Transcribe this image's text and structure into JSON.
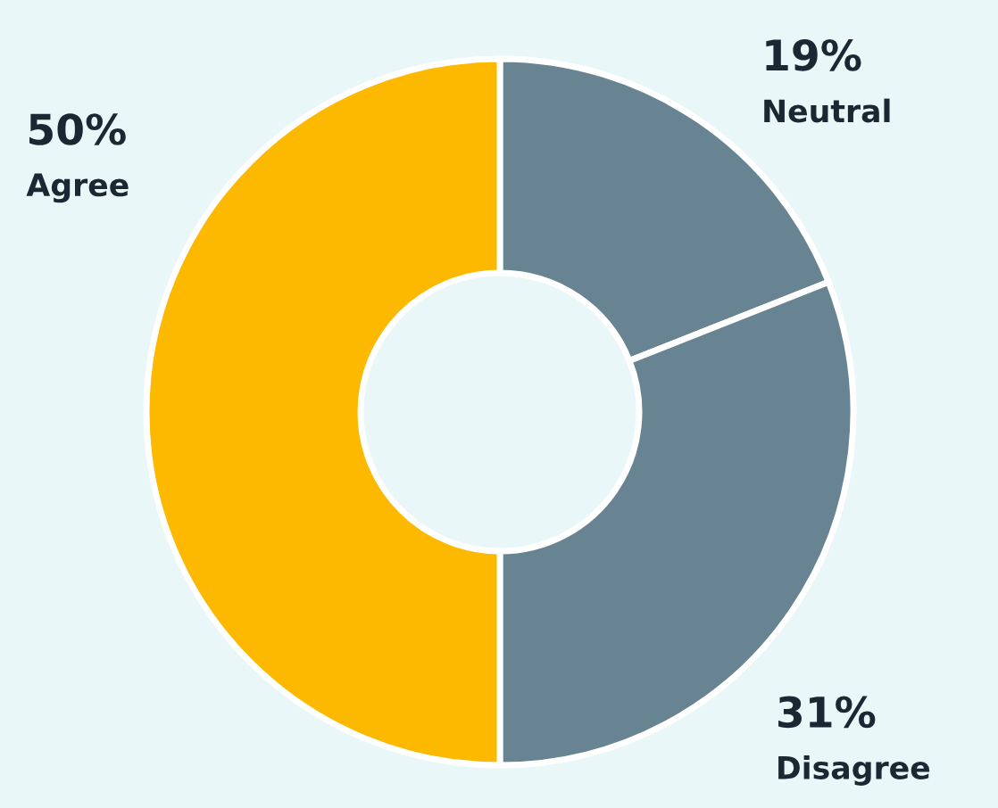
{
  "chart_data": {
    "type": "donut",
    "categories": [
      "Neutral",
      "Disagree",
      "Agree"
    ],
    "values": [
      19,
      31,
      50
    ],
    "colors": [
      "#688391",
      "#688391",
      "#fdb900"
    ],
    "value_labels": [
      "19%",
      "31%",
      "50%"
    ],
    "legend": false
  }
}
